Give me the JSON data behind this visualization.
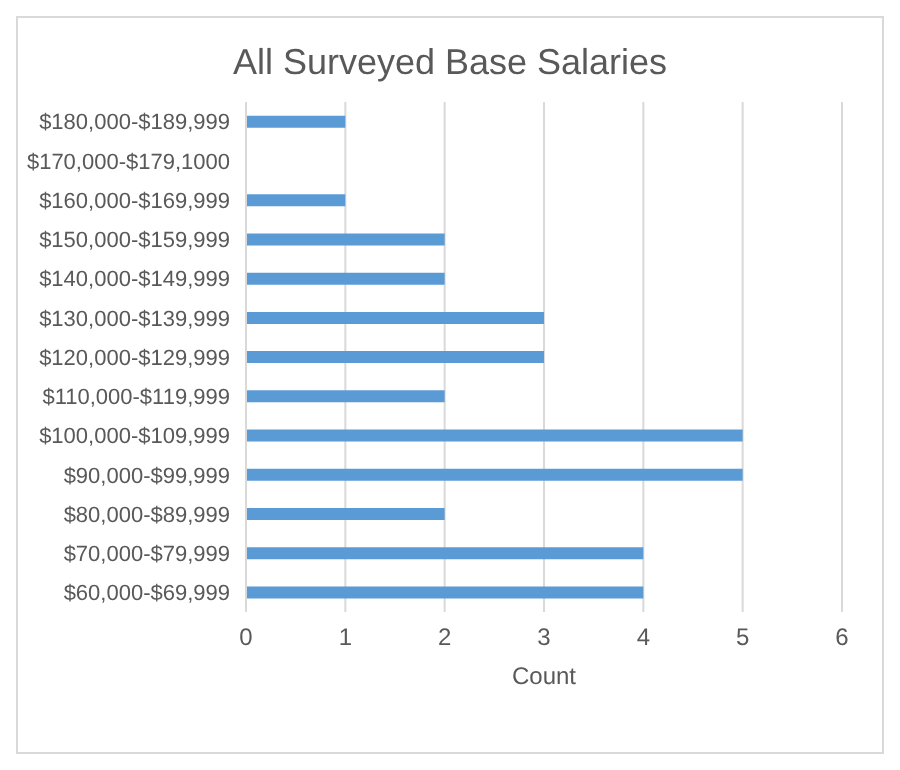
{
  "chart_data": {
    "type": "bar",
    "orientation": "horizontal",
    "title": "All Surveyed Base Salaries",
    "xlabel": "Count",
    "categories": [
      "$180,000-$189,999",
      "$170,000-$179,1000",
      "$160,000-$169,999",
      "$150,000-$159,999",
      "$140,000-$149,999",
      "$130,000-$139,999",
      "$120,000-$129,999",
      "$110,000-$119,999",
      "$100,000-$109,999",
      "$90,000-$99,999",
      "$80,000-$89,999",
      "$70,000-$79,999",
      "$60,000-$69,999"
    ],
    "values": [
      1,
      0,
      1,
      2,
      2,
      3,
      3,
      2,
      5,
      5,
      2,
      4,
      4
    ],
    "color": "#5b9bd5",
    "xlim": [
      0,
      6
    ],
    "xticks": [
      0,
      1,
      2,
      3,
      4,
      5,
      6
    ],
    "grid": "x"
  }
}
